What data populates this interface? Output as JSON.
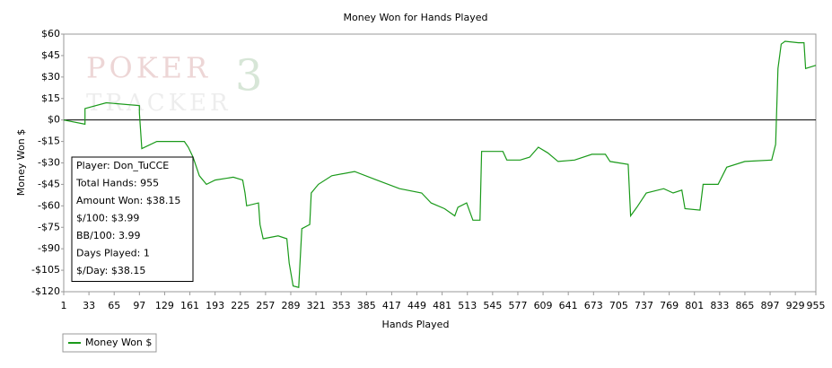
{
  "chart_data": {
    "type": "line",
    "title": "Money Won for Hands Played",
    "x_label": "Hands Played",
    "y_label": "Money Won $",
    "x": [
      1,
      28,
      28,
      55,
      97,
      97,
      100,
      119,
      154,
      159,
      165,
      173,
      182,
      193,
      216,
      228,
      231,
      233,
      248,
      250,
      254,
      273,
      284,
      287,
      292,
      299,
      303,
      313,
      315,
      324,
      341,
      370,
      398,
      427,
      455,
      467,
      484,
      497,
      501,
      512,
      520,
      529,
      531,
      558,
      563,
      580,
      592,
      603,
      615,
      628,
      649,
      671,
      688,
      694,
      717,
      720,
      728,
      740,
      762,
      774,
      785,
      789,
      808,
      812,
      831,
      842,
      865,
      899,
      904,
      907,
      911,
      916,
      933,
      940,
      942,
      955
    ],
    "series": [
      {
        "name": "Money Won $",
        "color": "#1a9a1a",
        "values": [
          0,
          -3,
          8,
          12,
          10,
          5,
          -20,
          -15,
          -15,
          -19,
          -26,
          -39,
          -45,
          -42,
          -40,
          -42,
          -51,
          -60,
          -58,
          -73,
          -83,
          -81,
          -83,
          -100,
          -116,
          -117,
          -76,
          -73,
          -51,
          -45,
          -39,
          -36,
          -42,
          -48,
          -51,
          -58,
          -62,
          -67,
          -61,
          -58,
          -70,
          -70,
          -22,
          -22,
          -28,
          -28,
          -26,
          -19,
          -23,
          -29,
          -28,
          -24,
          -24,
          -29,
          -31,
          -67,
          -61,
          -51,
          -48,
          -51,
          -49,
          -62,
          -63,
          -45,
          -45,
          -33,
          -29,
          -28,
          -17,
          36,
          53,
          55,
          54,
          54,
          36,
          38.15
        ]
      }
    ],
    "xlim": [
      1,
      955
    ],
    "ylim": [
      -120,
      60
    ],
    "xticks": [
      1,
      33,
      65,
      97,
      129,
      161,
      193,
      225,
      257,
      289,
      321,
      353,
      385,
      417,
      449,
      481,
      513,
      545,
      577,
      609,
      641,
      673,
      705,
      737,
      769,
      801,
      833,
      865,
      897,
      929,
      955
    ],
    "yticks": [
      {
        "value": 60,
        "label": "$60"
      },
      {
        "value": 45,
        "label": "$45"
      },
      {
        "value": 30,
        "label": "$30"
      },
      {
        "value": 15,
        "label": "$15"
      },
      {
        "value": 0,
        "label": "$0"
      },
      {
        "value": -15,
        "label": "-$15"
      },
      {
        "value": -30,
        "label": "-$30"
      },
      {
        "value": -45,
        "label": "-$45"
      },
      {
        "value": -60,
        "label": "-$60"
      },
      {
        "value": -75,
        "label": "-$75"
      },
      {
        "value": -90,
        "label": "-$90"
      },
      {
        "value": -105,
        "label": "-$105"
      },
      {
        "value": -120,
        "label": "-$120"
      }
    ],
    "zero_line": true,
    "info_box": [
      "Player: Don_TuCCE",
      "Total Hands: 955",
      "Amount Won: $38.15",
      "$/100: $3.99",
      "BB/100: 3.99",
      "Days Played: 1",
      "$/Day: $38.15"
    ],
    "watermark": [
      "POKER",
      "TRACKER",
      "3"
    ]
  }
}
